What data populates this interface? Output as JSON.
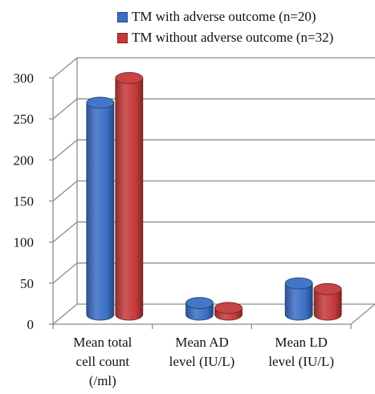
{
  "chart_data": {
    "type": "bar",
    "categories": [
      [
        "Mean total",
        "cell count",
        "(/ml)"
      ],
      [
        "Mean AD",
        "level (IU/L)"
      ],
      [
        "Mean LD",
        "level (IU/L)"
      ]
    ],
    "series": [
      {
        "name": "TM with adverse outcome (n=20)",
        "values": [
          258,
          14,
          38
        ],
        "color": "#3a6fc4"
      },
      {
        "name": "TM without adverse outcome (n=32)",
        "values": [
          288,
          8,
          31
        ],
        "color": "#c43a3a"
      }
    ],
    "yticks": [
      0,
      50,
      100,
      150,
      200,
      250,
      300
    ],
    "ylim": [
      0,
      300
    ],
    "grid": true,
    "legend_position": "top-right",
    "style": "3d-cylinder"
  }
}
